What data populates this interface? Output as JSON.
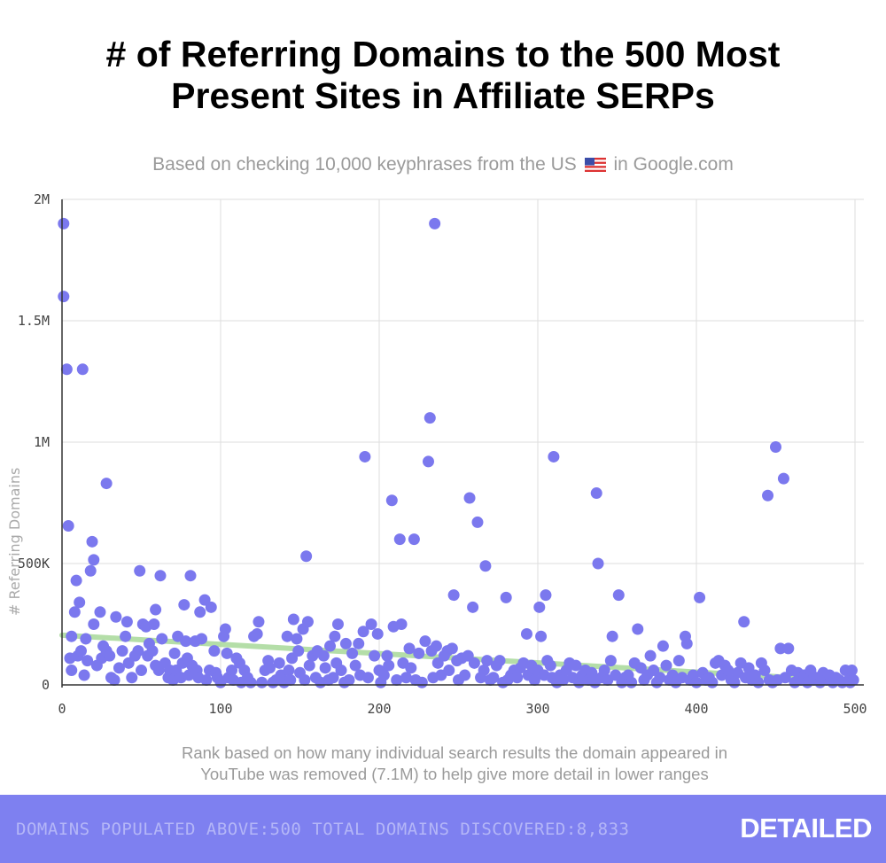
{
  "header": {
    "title_line1": "# of Referring Domains to the 500 Most",
    "title_line2": "Present Sites in Affiliate SERPs",
    "subtitle_before": "Based on checking 10,000 keyphrases from the US",
    "subtitle_after": "in Google.com",
    "flag_icon": "us-flag-icon"
  },
  "caption": {
    "line1": "Rank based on how many individual search results the domain appeared in",
    "line2": "YouTube was removed (7.1M)  to help give more detail in lower ranges"
  },
  "footer": {
    "stats": "DOMAINS POPULATED ABOVE:500 TOTAL DOMAINS DISCOVERED:8,833",
    "logo": "DETAILED",
    "background": "#7e80f0"
  },
  "colors": {
    "point": "#7b78ee",
    "trend": "#a8d99a",
    "grid": "#dddddd",
    "axis": "#333333"
  },
  "chart_data": {
    "type": "scatter",
    "ylabel": "# Referring Domains",
    "xlim": [
      0,
      500
    ],
    "ylim": [
      0,
      2000000
    ],
    "x_ticks": [
      0,
      100,
      200,
      300,
      400,
      500
    ],
    "x_tick_labels": [
      "0",
      "100",
      "200",
      "300",
      "400",
      "500"
    ],
    "y_ticks": [
      0,
      500000,
      1000000,
      1500000,
      2000000
    ],
    "y_tick_labels": [
      "0",
      "500K",
      "1M",
      "1.5M",
      "2M"
    ],
    "grid": true,
    "trendline": {
      "x": [
        0,
        500
      ],
      "y": [
        205000,
        15000
      ]
    },
    "points": [
      {
        "x": 1,
        "y": 1900000
      },
      {
        "x": 1,
        "y": 1600000
      },
      {
        "x": 3,
        "y": 1300000
      },
      {
        "x": 13,
        "y": 1300000
      },
      {
        "x": 28,
        "y": 830000
      },
      {
        "x": 4,
        "y": 655000
      },
      {
        "x": 19,
        "y": 590000
      },
      {
        "x": 20,
        "y": 515000
      },
      {
        "x": 18,
        "y": 470000
      },
      {
        "x": 9,
        "y": 430000
      },
      {
        "x": 11,
        "y": 340000
      },
      {
        "x": 8,
        "y": 300000
      },
      {
        "x": 6,
        "y": 200000
      },
      {
        "x": 15,
        "y": 190000
      },
      {
        "x": 5,
        "y": 110000
      },
      {
        "x": 6,
        "y": 60000
      },
      {
        "x": 10,
        "y": 120000
      },
      {
        "x": 12,
        "y": 140000
      },
      {
        "x": 14,
        "y": 40000
      },
      {
        "x": 16,
        "y": 100000
      },
      {
        "x": 20,
        "y": 250000
      },
      {
        "x": 22,
        "y": 80000
      },
      {
        "x": 24,
        "y": 300000
      },
      {
        "x": 25,
        "y": 110000
      },
      {
        "x": 26,
        "y": 160000
      },
      {
        "x": 28,
        "y": 140000
      },
      {
        "x": 30,
        "y": 120000
      },
      {
        "x": 31,
        "y": 30000
      },
      {
        "x": 33,
        "y": 20000
      },
      {
        "x": 34,
        "y": 280000
      },
      {
        "x": 36,
        "y": 70000
      },
      {
        "x": 38,
        "y": 140000
      },
      {
        "x": 40,
        "y": 200000
      },
      {
        "x": 41,
        "y": 260000
      },
      {
        "x": 42,
        "y": 90000
      },
      {
        "x": 44,
        "y": 30000
      },
      {
        "x": 46,
        "y": 120000
      },
      {
        "x": 48,
        "y": 140000
      },
      {
        "x": 49,
        "y": 470000
      },
      {
        "x": 50,
        "y": 60000
      },
      {
        "x": 51,
        "y": 250000
      },
      {
        "x": 53,
        "y": 240000
      },
      {
        "x": 54,
        "y": 120000
      },
      {
        "x": 55,
        "y": 170000
      },
      {
        "x": 57,
        "y": 140000
      },
      {
        "x": 58,
        "y": 250000
      },
      {
        "x": 59,
        "y": 80000
      },
      {
        "x": 59,
        "y": 310000
      },
      {
        "x": 61,
        "y": 60000
      },
      {
        "x": 62,
        "y": 450000
      },
      {
        "x": 63,
        "y": 190000
      },
      {
        "x": 65,
        "y": 90000
      },
      {
        "x": 67,
        "y": 30000
      },
      {
        "x": 68,
        "y": 60000
      },
      {
        "x": 70,
        "y": 20000
      },
      {
        "x": 71,
        "y": 130000
      },
      {
        "x": 72,
        "y": 60000
      },
      {
        "x": 73,
        "y": 200000
      },
      {
        "x": 75,
        "y": 30000
      },
      {
        "x": 76,
        "y": 90000
      },
      {
        "x": 77,
        "y": 330000
      },
      {
        "x": 78,
        "y": 180000
      },
      {
        "x": 79,
        "y": 110000
      },
      {
        "x": 80,
        "y": 40000
      },
      {
        "x": 81,
        "y": 450000
      },
      {
        "x": 82,
        "y": 80000
      },
      {
        "x": 84,
        "y": 180000
      },
      {
        "x": 85,
        "y": 60000
      },
      {
        "x": 86,
        "y": 30000
      },
      {
        "x": 87,
        "y": 300000
      },
      {
        "x": 88,
        "y": 190000
      },
      {
        "x": 90,
        "y": 350000
      },
      {
        "x": 91,
        "y": 20000
      },
      {
        "x": 93,
        "y": 60000
      },
      {
        "x": 94,
        "y": 320000
      },
      {
        "x": 96,
        "y": 140000
      },
      {
        "x": 97,
        "y": 50000
      },
      {
        "x": 98,
        "y": 30000
      },
      {
        "x": 100,
        "y": 10000
      },
      {
        "x": 102,
        "y": 200000
      },
      {
        "x": 103,
        "y": 230000
      },
      {
        "x": 104,
        "y": 130000
      },
      {
        "x": 105,
        "y": 30000
      },
      {
        "x": 107,
        "y": 60000
      },
      {
        "x": 108,
        "y": 20000
      },
      {
        "x": 110,
        "y": 110000
      },
      {
        "x": 112,
        "y": 90000
      },
      {
        "x": 113,
        "y": 10000
      },
      {
        "x": 115,
        "y": 60000
      },
      {
        "x": 117,
        "y": 30000
      },
      {
        "x": 119,
        "y": 10000
      },
      {
        "x": 121,
        "y": 200000
      },
      {
        "x": 123,
        "y": 210000
      },
      {
        "x": 124,
        "y": 260000
      },
      {
        "x": 126,
        "y": 10000
      },
      {
        "x": 128,
        "y": 60000
      },
      {
        "x": 130,
        "y": 100000
      },
      {
        "x": 131,
        "y": 70000
      },
      {
        "x": 133,
        "y": 10000
      },
      {
        "x": 135,
        "y": 20000
      },
      {
        "x": 137,
        "y": 90000
      },
      {
        "x": 138,
        "y": 40000
      },
      {
        "x": 140,
        "y": 10000
      },
      {
        "x": 142,
        "y": 200000
      },
      {
        "x": 143,
        "y": 60000
      },
      {
        "x": 144,
        "y": 20000
      },
      {
        "x": 145,
        "y": 110000
      },
      {
        "x": 146,
        "y": 270000
      },
      {
        "x": 148,
        "y": 190000
      },
      {
        "x": 149,
        "y": 140000
      },
      {
        "x": 150,
        "y": 50000
      },
      {
        "x": 152,
        "y": 230000
      },
      {
        "x": 153,
        "y": 20000
      },
      {
        "x": 154,
        "y": 530000
      },
      {
        "x": 155,
        "y": 260000
      },
      {
        "x": 156,
        "y": 80000
      },
      {
        "x": 158,
        "y": 120000
      },
      {
        "x": 160,
        "y": 30000
      },
      {
        "x": 161,
        "y": 140000
      },
      {
        "x": 163,
        "y": 10000
      },
      {
        "x": 165,
        "y": 120000
      },
      {
        "x": 166,
        "y": 70000
      },
      {
        "x": 168,
        "y": 20000
      },
      {
        "x": 169,
        "y": 160000
      },
      {
        "x": 171,
        "y": 30000
      },
      {
        "x": 172,
        "y": 200000
      },
      {
        "x": 173,
        "y": 90000
      },
      {
        "x": 174,
        "y": 250000
      },
      {
        "x": 176,
        "y": 60000
      },
      {
        "x": 178,
        "y": 10000
      },
      {
        "x": 179,
        "y": 170000
      },
      {
        "x": 181,
        "y": 20000
      },
      {
        "x": 183,
        "y": 130000
      },
      {
        "x": 185,
        "y": 80000
      },
      {
        "x": 187,
        "y": 170000
      },
      {
        "x": 188,
        "y": 40000
      },
      {
        "x": 190,
        "y": 220000
      },
      {
        "x": 191,
        "y": 940000
      },
      {
        "x": 193,
        "y": 30000
      },
      {
        "x": 195,
        "y": 250000
      },
      {
        "x": 197,
        "y": 120000
      },
      {
        "x": 199,
        "y": 210000
      },
      {
        "x": 200,
        "y": 60000
      },
      {
        "x": 201,
        "y": 10000
      },
      {
        "x": 203,
        "y": 40000
      },
      {
        "x": 205,
        "y": 120000
      },
      {
        "x": 206,
        "y": 80000
      },
      {
        "x": 208,
        "y": 760000
      },
      {
        "x": 209,
        "y": 240000
      },
      {
        "x": 211,
        "y": 20000
      },
      {
        "x": 213,
        "y": 600000
      },
      {
        "x": 214,
        "y": 250000
      },
      {
        "x": 215,
        "y": 90000
      },
      {
        "x": 217,
        "y": 30000
      },
      {
        "x": 219,
        "y": 150000
      },
      {
        "x": 220,
        "y": 70000
      },
      {
        "x": 222,
        "y": 600000
      },
      {
        "x": 223,
        "y": 20000
      },
      {
        "x": 225,
        "y": 130000
      },
      {
        "x": 227,
        "y": 10000
      },
      {
        "x": 229,
        "y": 180000
      },
      {
        "x": 231,
        "y": 920000
      },
      {
        "x": 232,
        "y": 1100000
      },
      {
        "x": 233,
        "y": 140000
      },
      {
        "x": 234,
        "y": 30000
      },
      {
        "x": 235,
        "y": 1900000
      },
      {
        "x": 236,
        "y": 160000
      },
      {
        "x": 237,
        "y": 90000
      },
      {
        "x": 239,
        "y": 40000
      },
      {
        "x": 241,
        "y": 120000
      },
      {
        "x": 243,
        "y": 140000
      },
      {
        "x": 244,
        "y": 60000
      },
      {
        "x": 246,
        "y": 150000
      },
      {
        "x": 247,
        "y": 370000
      },
      {
        "x": 249,
        "y": 100000
      },
      {
        "x": 250,
        "y": 20000
      },
      {
        "x": 252,
        "y": 110000
      },
      {
        "x": 254,
        "y": 40000
      },
      {
        "x": 256,
        "y": 120000
      },
      {
        "x": 257,
        "y": 770000
      },
      {
        "x": 259,
        "y": 320000
      },
      {
        "x": 260,
        "y": 90000
      },
      {
        "x": 262,
        "y": 670000
      },
      {
        "x": 264,
        "y": 30000
      },
      {
        "x": 266,
        "y": 60000
      },
      {
        "x": 267,
        "y": 490000
      },
      {
        "x": 268,
        "y": 100000
      },
      {
        "x": 270,
        "y": 20000
      },
      {
        "x": 272,
        "y": 30000
      },
      {
        "x": 274,
        "y": 80000
      },
      {
        "x": 276,
        "y": 100000
      },
      {
        "x": 278,
        "y": 10000
      },
      {
        "x": 280,
        "y": 360000
      },
      {
        "x": 281,
        "y": 20000
      },
      {
        "x": 283,
        "y": 40000
      },
      {
        "x": 285,
        "y": 60000
      },
      {
        "x": 287,
        "y": 30000
      },
      {
        "x": 289,
        "y": 70000
      },
      {
        "x": 291,
        "y": 90000
      },
      {
        "x": 293,
        "y": 210000
      },
      {
        "x": 294,
        "y": 40000
      },
      {
        "x": 296,
        "y": 80000
      },
      {
        "x": 298,
        "y": 20000
      },
      {
        "x": 300,
        "y": 60000
      },
      {
        "x": 301,
        "y": 320000
      },
      {
        "x": 302,
        "y": 200000
      },
      {
        "x": 304,
        "y": 40000
      },
      {
        "x": 305,
        "y": 370000
      },
      {
        "x": 306,
        "y": 100000
      },
      {
        "x": 308,
        "y": 80000
      },
      {
        "x": 309,
        "y": 30000
      },
      {
        "x": 310,
        "y": 940000
      },
      {
        "x": 312,
        "y": 10000
      },
      {
        "x": 314,
        "y": 40000
      },
      {
        "x": 316,
        "y": 20000
      },
      {
        "x": 318,
        "y": 60000
      },
      {
        "x": 320,
        "y": 90000
      },
      {
        "x": 322,
        "y": 30000
      },
      {
        "x": 324,
        "y": 80000
      },
      {
        "x": 326,
        "y": 10000
      },
      {
        "x": 328,
        "y": 40000
      },
      {
        "x": 330,
        "y": 60000
      },
      {
        "x": 332,
        "y": 20000
      },
      {
        "x": 334,
        "y": 50000
      },
      {
        "x": 336,
        "y": 10000
      },
      {
        "x": 337,
        "y": 790000
      },
      {
        "x": 338,
        "y": 500000
      },
      {
        "x": 340,
        "y": 30000
      },
      {
        "x": 342,
        "y": 60000
      },
      {
        "x": 344,
        "y": 20000
      },
      {
        "x": 346,
        "y": 100000
      },
      {
        "x": 347,
        "y": 200000
      },
      {
        "x": 349,
        "y": 40000
      },
      {
        "x": 351,
        "y": 370000
      },
      {
        "x": 353,
        "y": 10000
      },
      {
        "x": 355,
        "y": 30000
      },
      {
        "x": 357,
        "y": 40000
      },
      {
        "x": 359,
        "y": 10000
      },
      {
        "x": 361,
        "y": 90000
      },
      {
        "x": 363,
        "y": 230000
      },
      {
        "x": 365,
        "y": 70000
      },
      {
        "x": 367,
        "y": 20000
      },
      {
        "x": 369,
        "y": 40000
      },
      {
        "x": 371,
        "y": 120000
      },
      {
        "x": 373,
        "y": 60000
      },
      {
        "x": 375,
        "y": 10000
      },
      {
        "x": 377,
        "y": 30000
      },
      {
        "x": 379,
        "y": 160000
      },
      {
        "x": 381,
        "y": 80000
      },
      {
        "x": 383,
        "y": 20000
      },
      {
        "x": 385,
        "y": 40000
      },
      {
        "x": 387,
        "y": 10000
      },
      {
        "x": 389,
        "y": 100000
      },
      {
        "x": 391,
        "y": 30000
      },
      {
        "x": 393,
        "y": 200000
      },
      {
        "x": 394,
        "y": 170000
      },
      {
        "x": 396,
        "y": 20000
      },
      {
        "x": 398,
        "y": 40000
      },
      {
        "x": 400,
        "y": 10000
      },
      {
        "x": 402,
        "y": 360000
      },
      {
        "x": 404,
        "y": 50000
      },
      {
        "x": 406,
        "y": 20000
      },
      {
        "x": 408,
        "y": 30000
      },
      {
        "x": 410,
        "y": 10000
      },
      {
        "x": 412,
        "y": 90000
      },
      {
        "x": 414,
        "y": 100000
      },
      {
        "x": 416,
        "y": 40000
      },
      {
        "x": 418,
        "y": 80000
      },
      {
        "x": 420,
        "y": 60000
      },
      {
        "x": 422,
        "y": 20000
      },
      {
        "x": 424,
        "y": 10000
      },
      {
        "x": 426,
        "y": 50000
      },
      {
        "x": 428,
        "y": 90000
      },
      {
        "x": 430,
        "y": 260000
      },
      {
        "x": 431,
        "y": 30000
      },
      {
        "x": 433,
        "y": 70000
      },
      {
        "x": 435,
        "y": 20000
      },
      {
        "x": 437,
        "y": 40000
      },
      {
        "x": 439,
        "y": 10000
      },
      {
        "x": 441,
        "y": 90000
      },
      {
        "x": 443,
        "y": 60000
      },
      {
        "x": 445,
        "y": 780000
      },
      {
        "x": 446,
        "y": 20000
      },
      {
        "x": 448,
        "y": 10000
      },
      {
        "x": 450,
        "y": 980000
      },
      {
        "x": 451,
        "y": 20000
      },
      {
        "x": 453,
        "y": 150000
      },
      {
        "x": 455,
        "y": 850000
      },
      {
        "x": 456,
        "y": 30000
      },
      {
        "x": 458,
        "y": 150000
      },
      {
        "x": 460,
        "y": 60000
      },
      {
        "x": 462,
        "y": 10000
      },
      {
        "x": 464,
        "y": 50000
      },
      {
        "x": 466,
        "y": 20000
      },
      {
        "x": 468,
        "y": 40000
      },
      {
        "x": 470,
        "y": 10000
      },
      {
        "x": 472,
        "y": 60000
      },
      {
        "x": 474,
        "y": 20000
      },
      {
        "x": 476,
        "y": 30000
      },
      {
        "x": 478,
        "y": 10000
      },
      {
        "x": 480,
        "y": 50000
      },
      {
        "x": 482,
        "y": 20000
      },
      {
        "x": 484,
        "y": 40000
      },
      {
        "x": 486,
        "y": 10000
      },
      {
        "x": 488,
        "y": 30000
      },
      {
        "x": 490,
        "y": 20000
      },
      {
        "x": 492,
        "y": 10000
      },
      {
        "x": 494,
        "y": 60000
      },
      {
        "x": 496,
        "y": 20000
      },
      {
        "x": 497,
        "y": 10000
      },
      {
        "x": 498,
        "y": 60000
      },
      {
        "x": 499,
        "y": 20000
      }
    ]
  }
}
